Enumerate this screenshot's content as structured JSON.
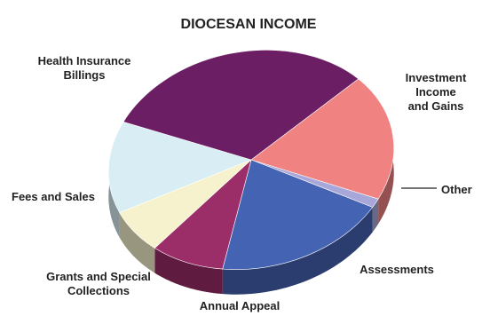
{
  "chart_data": {
    "type": "pie",
    "title": "DIOCESAN INCOME",
    "slices": [
      {
        "label_lines": [
          "Investment",
          "Income",
          "and Gains"
        ],
        "value": 19.0,
        "color": "#F08282"
      },
      {
        "label_lines": [
          "Other"
        ],
        "value": 1.3,
        "color": "#A7A7D9"
      },
      {
        "label_lines": [
          "Assessments"
        ],
        "value": 19.4,
        "color": "#4463B2"
      },
      {
        "label_lines": [
          "Annual Appeal"
        ],
        "value": 8.6,
        "color": "#9B2D68"
      },
      {
        "label_lines": [
          "Grants and Special",
          "Collections"
        ],
        "value": 6.9,
        "color": "#F7F2CE"
      },
      {
        "label_lines": [
          "Fees and Sales"
        ],
        "value": 13.6,
        "color": "#D9EEF4"
      },
      {
        "label_lines": [
          "Health Insurance",
          "Billings"
        ],
        "value": 31.2,
        "color": "#6B1E63"
      }
    ],
    "legend": "none"
  }
}
